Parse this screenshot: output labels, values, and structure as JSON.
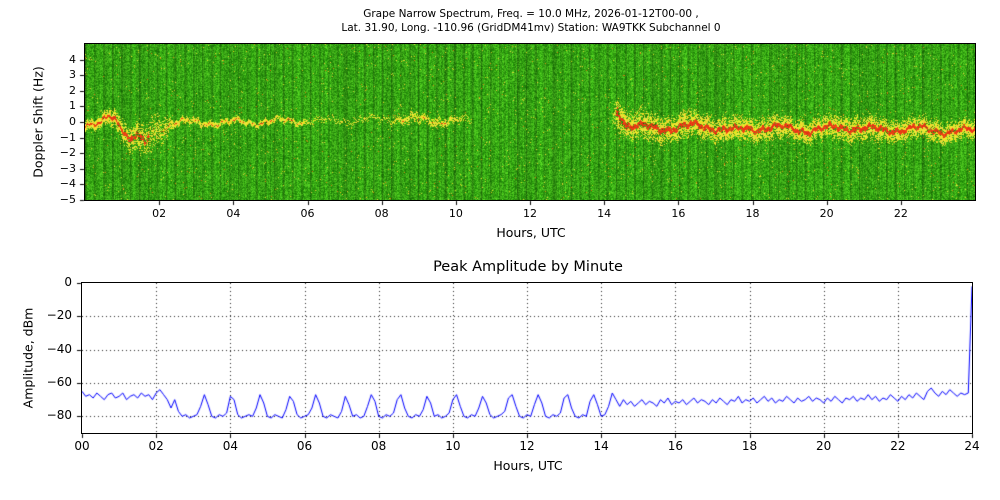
{
  "chart_data": [
    {
      "type": "heatmap",
      "name": "grape-narrow-spectrum",
      "title_line1": "Grape Narrow Spectrum, Freq. = 10.0 MHz, 2026-01-12T00-00 ,",
      "title_line2": "Lat.  31.90, Long. -110.96 (GridDM41mv) Station: WA9TKK Subchannel 0",
      "xlabel": "Hours, UTC",
      "ylabel": "Doppler Shift (Hz)",
      "xlim": [
        0,
        24
      ],
      "ylim": [
        -5,
        5
      ],
      "xtick_values": [
        2,
        4,
        6,
        8,
        10,
        12,
        14,
        16,
        18,
        20,
        22
      ],
      "xtick_labels": [
        "02",
        "04",
        "06",
        "08",
        "10",
        "12",
        "14",
        "16",
        "18",
        "20",
        "22"
      ],
      "ytick_values": [
        4,
        3,
        2,
        1,
        0,
        -1,
        -2,
        -3,
        -4,
        -5
      ],
      "ytick_labels": [
        "4",
        "3",
        "2",
        "1",
        "0",
        "−1",
        "−2",
        "−3",
        "−4",
        "−5"
      ],
      "colors": {
        "noise_green": "#2f9e14",
        "speckle_yellow": "#d8e23c",
        "trace_yellow": "#e8e84a",
        "trace_red_core": "#dd2200"
      },
      "description": "Green RF-noise spectrogram with vertical striping; Doppler trace near 0 Hz: wavy yellow/red 00:00-02:20 dipping to -1.5 Hz, faint thin line 02:20-06:00, very faint 08:30-10:10, blank 10:10-14:20, upward spike at 14:20, then strong fuzzy yellow trace with red core slightly below 0 Hz until 24:00",
      "trace_control_points": [
        [
          0.0,
          -0.3,
          0.25,
          0.95
        ],
        [
          0.4,
          -0.2,
          0.3,
          0.9
        ],
        [
          0.6,
          0.5,
          0.4,
          0.85
        ],
        [
          0.8,
          0.3,
          0.5,
          0.85
        ],
        [
          1.0,
          -0.3,
          0.6,
          0.8
        ],
        [
          1.2,
          -1.2,
          0.8,
          0.75
        ],
        [
          1.4,
          -0.8,
          0.9,
          0.7
        ],
        [
          1.6,
          -1.5,
          0.9,
          0.6
        ],
        [
          1.8,
          -0.6,
          1.0,
          0.5
        ],
        [
          2.1,
          -0.3,
          0.8,
          0.45
        ],
        [
          2.4,
          0.0,
          0.2,
          0.4
        ],
        [
          4.0,
          0.0,
          0.15,
          0.35
        ],
        [
          5.8,
          0.1,
          0.15,
          0.3
        ],
        [
          6.0,
          0.1,
          0.2,
          0.08
        ],
        [
          8.2,
          0.2,
          0.2,
          0.08
        ],
        [
          8.6,
          0.2,
          0.3,
          0.28
        ],
        [
          9.6,
          0.1,
          0.3,
          0.28
        ],
        [
          10.2,
          0.1,
          0.2,
          0.12
        ],
        [
          10.5,
          0.0,
          0.2,
          0.05
        ],
        [
          14.2,
          0.0,
          0.2,
          0.05
        ],
        [
          14.35,
          0.8,
          1.2,
          0.75
        ],
        [
          14.6,
          -0.2,
          0.8,
          0.95
        ],
        [
          15.5,
          -0.4,
          0.8,
          0.9
        ],
        [
          16.5,
          -0.2,
          0.7,
          0.9
        ],
        [
          17.5,
          -0.5,
          0.7,
          0.9
        ],
        [
          18.5,
          -0.3,
          0.7,
          0.9
        ],
        [
          19.5,
          -0.5,
          0.6,
          0.9
        ],
        [
          20.5,
          -0.3,
          0.7,
          0.9
        ],
        [
          21.5,
          -0.5,
          0.7,
          0.9
        ],
        [
          22.5,
          -0.4,
          0.6,
          0.9
        ],
        [
          23.3,
          -0.6,
          0.6,
          0.9
        ],
        [
          24.0,
          -0.5,
          0.5,
          0.9
        ]
      ]
    },
    {
      "type": "line",
      "name": "peak-amplitude-by-minute",
      "title": "Peak Amplitude by Minute",
      "xlabel": "Hours, UTC",
      "ylabel": "Amplitude, dBm",
      "xlim": [
        0,
        24
      ],
      "ylim": [
        -90,
        0
      ],
      "xtick_values": [
        0,
        2,
        4,
        6,
        8,
        10,
        12,
        14,
        16,
        18,
        20,
        22,
        24
      ],
      "xtick_labels": [
        "00",
        "02",
        "04",
        "06",
        "08",
        "10",
        "12",
        "14",
        "16",
        "18",
        "20",
        "22",
        "24"
      ],
      "ytick_values": [
        0,
        -20,
        -40,
        -60,
        -80
      ],
      "ytick_labels": [
        "0",
        "−20",
        "−40",
        "−60",
        "−80"
      ],
      "grid": "dotted",
      "legend": "none",
      "line_color": "#0000ff",
      "series": [
        {
          "name": "Peak amplitude (dBm)",
          "x_start": 0,
          "x_step": 0.1,
          "values": [
            -65,
            -68,
            -67,
            -69,
            -66,
            -68,
            -70,
            -67,
            -66,
            -69,
            -68,
            -66,
            -70,
            -68,
            -67,
            -69,
            -66,
            -68,
            -67,
            -70,
            -66,
            -64,
            -67,
            -70,
            -75,
            -70,
            -77,
            -80,
            -79,
            -81,
            -80,
            -79,
            -74,
            -67,
            -73,
            -80,
            -81,
            -79,
            -80,
            -78,
            -68,
            -70,
            -79,
            -81,
            -80,
            -79,
            -80,
            -75,
            -67,
            -72,
            -80,
            -81,
            -79,
            -80,
            -81,
            -76,
            -68,
            -71,
            -79,
            -81,
            -80,
            -79,
            -75,
            -67,
            -72,
            -80,
            -81,
            -79,
            -80,
            -81,
            -77,
            -68,
            -73,
            -80,
            -79,
            -81,
            -80,
            -74,
            -67,
            -71,
            -80,
            -81,
            -79,
            -80,
            -78,
            -70,
            -67,
            -75,
            -80,
            -81,
            -79,
            -80,
            -76,
            -68,
            -72,
            -80,
            -79,
            -81,
            -80,
            -78,
            -70,
            -67,
            -74,
            -80,
            -81,
            -79,
            -80,
            -75,
            -68,
            -72,
            -79,
            -81,
            -80,
            -79,
            -77,
            -69,
            -67,
            -74,
            -80,
            -81,
            -79,
            -80,
            -73,
            -67,
            -72,
            -80,
            -81,
            -79,
            -80,
            -78,
            -69,
            -67,
            -75,
            -80,
            -81,
            -79,
            -80,
            -71,
            -67,
            -73,
            -80,
            -79,
            -74,
            -66,
            -70,
            -74,
            -70,
            -73,
            -71,
            -74,
            -72,
            -70,
            -73,
            -71,
            -72,
            -74,
            -70,
            -72,
            -69,
            -73,
            -71,
            -72,
            -70,
            -73,
            -71,
            -69,
            -72,
            -70,
            -71,
            -73,
            -70,
            -72,
            -69,
            -71,
            -73,
            -70,
            -71,
            -68,
            -72,
            -70,
            -71,
            -69,
            -72,
            -70,
            -68,
            -71,
            -69,
            -72,
            -70,
            -71,
            -68,
            -70,
            -72,
            -69,
            -71,
            -70,
            -68,
            -71,
            -69,
            -70,
            -72,
            -69,
            -71,
            -68,
            -70,
            -72,
            -69,
            -70,
            -68,
            -71,
            -69,
            -70,
            -67,
            -70,
            -68,
            -71,
            -69,
            -70,
            -67,
            -69,
            -71,
            -68,
            -70,
            -67,
            -69,
            -66,
            -68,
            -70,
            -65,
            -63,
            -66,
            -68,
            -65,
            -67,
            -64,
            -66,
            -68,
            -66,
            -67,
            -66,
            -2
          ]
        }
      ]
    }
  ]
}
